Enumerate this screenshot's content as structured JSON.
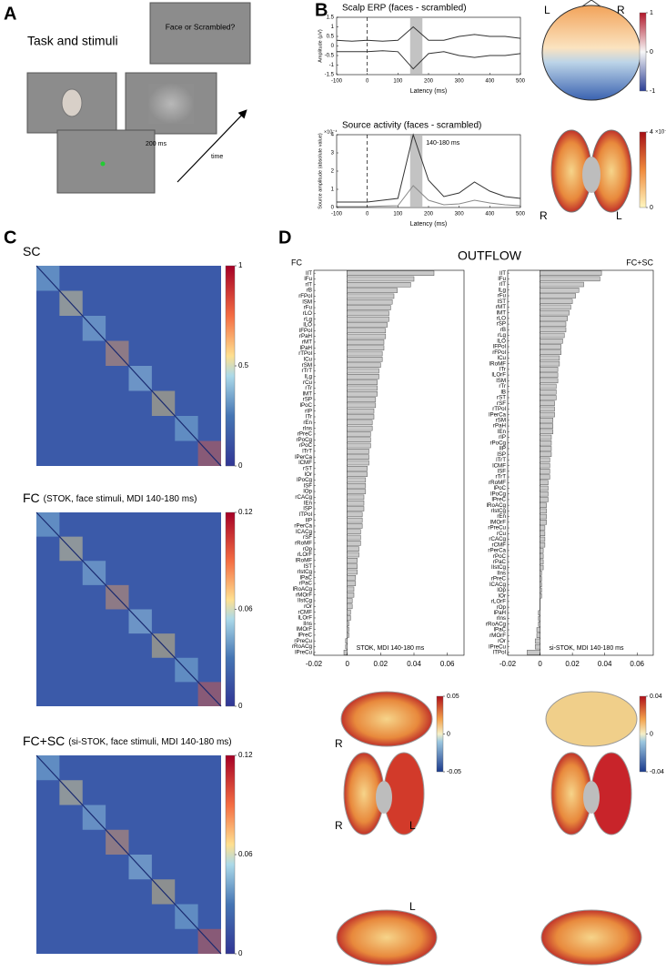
{
  "panel_labels": [
    "A",
    "B",
    "C",
    "D"
  ],
  "task": {
    "title": "Task and stimuli",
    "question": "Face or Scrambled?",
    "duration": "200 ms",
    "axis": "time"
  },
  "topomap": {
    "left": "L",
    "right": "R",
    "colorbar": {
      "lim": [
        -1,
        1
      ],
      "ticks": [
        -1,
        0,
        1
      ]
    }
  },
  "source_brain": {
    "right": "R",
    "left": "L",
    "colorbar": {
      "lim": [
        0,
        4
      ],
      "ticks": [
        0,
        4
      ],
      "exponent": "×10⁻⁴"
    }
  },
  "outflow_title": "OUTFLOW",
  "outflow_brains": [
    {
      "labels": [
        "R",
        "R",
        "L",
        "L"
      ],
      "colorbar": {
        "lim": [
          -0.05,
          0.05
        ],
        "ticks": [
          -0.05,
          0,
          0.05
        ]
      }
    },
    {
      "colorbar": {
        "lim": [
          -0.04,
          0.04
        ],
        "ticks": [
          -0.04,
          0,
          0.04
        ]
      }
    }
  ],
  "chart_data": [
    {
      "type": "line",
      "title": "Scalp ERP (faces - scrambled)",
      "x_label": "Latency (ms)",
      "y_label": "Amplitude (μV)",
      "xlim": [
        -100,
        500
      ],
      "xticks": [
        -100,
        0,
        100,
        200,
        300,
        400,
        500
      ],
      "ylim": [
        -1.5,
        1.5
      ],
      "yticks": [
        -1.5,
        -1,
        -0.5,
        0,
        0.5,
        1,
        1.5
      ],
      "highlight": [
        140,
        180
      ],
      "x": [
        -100,
        -50,
        0,
        50,
        100,
        150,
        200,
        250,
        300,
        350,
        400,
        450,
        500
      ],
      "series": [
        {
          "color": "#333333",
          "values": [
            0.3,
            0.25,
            0.3,
            0.25,
            0.3,
            1.0,
            0.3,
            0.3,
            0.5,
            0.6,
            0.5,
            0.5,
            0.4
          ]
        },
        {
          "color": "#333333",
          "values": [
            -0.3,
            -0.3,
            -0.3,
            -0.25,
            -0.3,
            -1.2,
            -0.4,
            -0.3,
            -0.5,
            -0.6,
            -0.5,
            -0.5,
            -0.4
          ]
        }
      ]
    },
    {
      "type": "line",
      "title": "Source activity (faces - scrambled)",
      "x_label": "Latency (ms)",
      "y_label": "Source amplitude (absolute value)",
      "y_exponent": "×10⁻⁴",
      "annotation": "140-180 ms",
      "xlim": [
        -100,
        500
      ],
      "xticks": [
        -100,
        0,
        100,
        200,
        300,
        400,
        500
      ],
      "ylim": [
        0,
        4
      ],
      "yticks": [
        0,
        1,
        2,
        3,
        4
      ],
      "highlight": [
        140,
        180
      ],
      "x": [
        -100,
        -50,
        0,
        50,
        100,
        150,
        200,
        250,
        300,
        350,
        400,
        450,
        500
      ],
      "series": [
        {
          "color": "#333333",
          "values": [
            0.3,
            0.3,
            0.3,
            0.4,
            0.5,
            4.0,
            1.5,
            0.6,
            0.8,
            1.4,
            0.9,
            0.6,
            0.5
          ]
        },
        {
          "color": "#888888",
          "values": [
            0.05,
            0.05,
            0.05,
            0.08,
            0.1,
            1.2,
            0.4,
            0.15,
            0.2,
            0.4,
            0.25,
            0.15,
            0.1
          ]
        }
      ]
    },
    {
      "type": "heatmap",
      "title": "SC",
      "clim": [
        0,
        1
      ],
      "colorbar_ticks": [
        0,
        0.5,
        1
      ]
    },
    {
      "type": "heatmap",
      "title": "FC",
      "subtitle": "(STOK, face stimuli, MDI 140-180 ms)",
      "clim": [
        0,
        0.12
      ],
      "colorbar_ticks": [
        0,
        0.06,
        0.12
      ]
    },
    {
      "type": "heatmap",
      "title": "FC+SC",
      "subtitle": "(si-STOK, face stimuli, MDI 140-180 ms)",
      "clim": [
        0,
        0.12
      ],
      "colorbar_ticks": [
        0,
        0.06,
        0.12
      ]
    },
    {
      "type": "hbar",
      "title": "FC",
      "annotation": "STOK, MDI 140-180 ms",
      "color": "#c8c8c8",
      "xlim": [
        -0.02,
        0.07
      ],
      "xticks": [
        -0.02,
        0,
        0.02,
        0.04,
        0.06
      ],
      "categories": [
        "lIT",
        "lFu",
        "rIT",
        "rB",
        "rFPol",
        "lSM",
        "rFu",
        "rLO",
        "rLg",
        "lLO",
        "lFPol",
        "rPaH",
        "rMT",
        "lPaH",
        "rTPol",
        "lCu",
        "rSM",
        "rTrT",
        "lLg",
        "rCu",
        "rTr",
        "lMT",
        "rSP",
        "lPoC",
        "rIP",
        "lTr",
        "rEn",
        "rIns",
        "rPreC",
        "rPoCg",
        "rPoC",
        "lTrT",
        "lPerCa",
        "lCMF",
        "rST",
        "lOr",
        "lPoCg",
        "lSF",
        "lOp",
        "rCACg",
        "lEn",
        "lSP",
        "lTPol",
        "lIP",
        "rPerCa",
        "lCACg",
        "rSF",
        "rRoMF",
        "rOp",
        "rLOrF",
        "lRoMF",
        "lST",
        "rIstCg",
        "lPaC",
        "rPaC",
        "lRoACg",
        "rMOrF",
        "lIstCg",
        "rOr",
        "rCMF",
        "lLOrF",
        "lIns",
        "lMOrF",
        "lPreC",
        "rPreCu",
        "rRoACg",
        "lPreCu"
      ],
      "values": [
        0.052,
        0.04,
        0.038,
        0.03,
        0.028,
        0.027,
        0.026,
        0.025,
        0.025,
        0.024,
        0.023,
        0.023,
        0.022,
        0.022,
        0.021,
        0.021,
        0.02,
        0.019,
        0.019,
        0.018,
        0.018,
        0.018,
        0.017,
        0.017,
        0.016,
        0.016,
        0.015,
        0.015,
        0.014,
        0.014,
        0.014,
        0.013,
        0.013,
        0.013,
        0.012,
        0.012,
        0.011,
        0.011,
        0.011,
        0.01,
        0.01,
        0.01,
        0.009,
        0.009,
        0.009,
        0.008,
        0.008,
        0.008,
        0.007,
        0.007,
        0.006,
        0.006,
        0.006,
        0.005,
        0.005,
        0.004,
        0.004,
        0.003,
        0.003,
        0.002,
        0.002,
        0.001,
        0.001,
        0.001,
        -0.001,
        -0.001,
        -0.002
      ]
    },
    {
      "type": "hbar",
      "title": "FC+SC",
      "annotation": "si-STOK, MDI 140-180 ms",
      "color": "#c8c8c8",
      "xlim": [
        -0.02,
        0.07
      ],
      "xticks": [
        -0.02,
        0,
        0.02,
        0.04,
        0.06
      ],
      "categories": [
        "lIT",
        "lFu",
        "rIT",
        "lLg",
        "rFu",
        "lST",
        "rMT",
        "lMT",
        "rLO",
        "rSP",
        "rB",
        "rLg",
        "lLO",
        "lFPol",
        "rFPol",
        "lCu",
        "lRoMF",
        "lTr",
        "lLOrF",
        "lSM",
        "rTr",
        "lB",
        "rST",
        "rSF",
        "rTPol",
        "lPerCa",
        "rSM",
        "rPaH",
        "lEn",
        "rIP",
        "rPoCg",
        "lIP",
        "lSP",
        "lTrT",
        "lCMF",
        "lSF",
        "rTrT",
        "rRoMF",
        "lPoC",
        "lPoCg",
        "lPreC",
        "lRoACg",
        "rIstCg",
        "rEn",
        "lMOrF",
        "rPreCu",
        "rCu",
        "rCACg",
        "rCMF",
        "rPerCa",
        "rPoC",
        "rPaC",
        "lIstCg",
        "lIns",
        "rPreC",
        "lCACg",
        "lOp",
        "lOr",
        "rLOrF",
        "rOp",
        "lPaH",
        "rIns",
        "rRoACg",
        "lPaC",
        "rMOrF",
        "rOr",
        "lPreCu",
        "lTPol"
      ],
      "values": [
        0.038,
        0.037,
        0.027,
        0.024,
        0.022,
        0.02,
        0.019,
        0.018,
        0.017,
        0.016,
        0.016,
        0.015,
        0.014,
        0.013,
        0.013,
        0.012,
        0.012,
        0.011,
        0.011,
        0.011,
        0.01,
        0.01,
        0.01,
        0.009,
        0.009,
        0.009,
        0.008,
        0.008,
        0.008,
        0.007,
        0.007,
        0.007,
        0.007,
        0.006,
        0.006,
        0.006,
        0.006,
        0.005,
        0.005,
        0.005,
        0.005,
        0.004,
        0.004,
        0.004,
        0.004,
        0.003,
        0.003,
        0.003,
        0.003,
        0.002,
        0.002,
        0.002,
        0.002,
        0.001,
        0.001,
        0.001,
        0.001,
        0.001,
        0.0,
        0.0,
        -0.001,
        -0.001,
        -0.001,
        -0.002,
        -0.002,
        -0.003,
        -0.003,
        -0.008
      ]
    }
  ]
}
